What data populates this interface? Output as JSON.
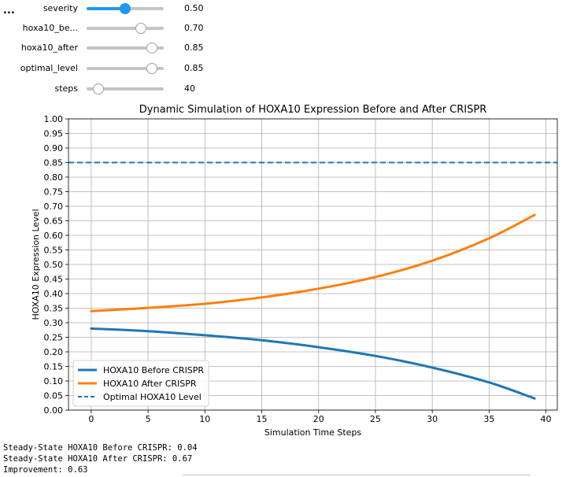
{
  "toolbar": {
    "ellipsis": "..."
  },
  "sliders": [
    {
      "label": "severity",
      "value_text": "0.50",
      "value": 0.5,
      "active": true
    },
    {
      "label": "hoxa10_be...",
      "value_text": "0.70",
      "value": 0.7,
      "active": false
    },
    {
      "label": "hoxa10_after",
      "value_text": "0.85",
      "value": 0.85,
      "active": false
    },
    {
      "label": "optimal_level",
      "value_text": "0.85",
      "value": 0.85,
      "active": false
    },
    {
      "label": "steps",
      "value_text": "40",
      "value": 40,
      "min": 10,
      "max": 200,
      "active": false
    }
  ],
  "chart_data": {
    "type": "line",
    "title": "Dynamic Simulation of HOXA10 Expression Before and After CRISPR",
    "xlabel": "Simulation Time Steps",
    "ylabel": "HOXA10 Expression Level",
    "xlim": [
      -2,
      41
    ],
    "ylim": [
      0,
      1.0
    ],
    "xticks": [
      0,
      5,
      10,
      15,
      20,
      25,
      30,
      35,
      40
    ],
    "yticks": [
      0.0,
      0.05,
      0.1,
      0.15,
      0.2,
      0.25,
      0.3,
      0.35,
      0.4,
      0.45,
      0.5,
      0.55,
      0.6,
      0.65,
      0.7,
      0.75,
      0.8,
      0.85,
      0.9,
      0.95,
      1.0
    ],
    "ytick_labels": [
      "0.00",
      "0.05",
      "0.10",
      "0.15",
      "0.20",
      "0.25",
      "0.30",
      "0.35",
      "0.40",
      "0.45",
      "0.50",
      "0.55",
      "0.60",
      "0.65",
      "0.70",
      "0.75",
      "0.80",
      "0.85",
      "0.90",
      "0.95",
      "1.00"
    ],
    "grid": true,
    "legend_position": "lower-left",
    "series": [
      {
        "name": "HOXA10 Before CRISPR",
        "color": "#1f77b4",
        "style": "solid",
        "x": [
          0,
          5,
          10,
          15,
          20,
          25,
          30,
          35,
          39
        ],
        "y": [
          0.28,
          0.271,
          0.257,
          0.24,
          0.216,
          0.186,
          0.146,
          0.095,
          0.04
        ]
      },
      {
        "name": "HOXA10 After CRISPR",
        "color": "#ff7f0e",
        "style": "solid",
        "x": [
          0,
          5,
          10,
          15,
          20,
          25,
          30,
          35,
          39
        ],
        "y": [
          0.34,
          0.351,
          0.365,
          0.387,
          0.417,
          0.457,
          0.513,
          0.59,
          0.67
        ]
      },
      {
        "name": "Optimal HOXA10 Level",
        "color": "#1f77b4",
        "style": "dashed",
        "y_const": 0.85
      }
    ]
  },
  "output": {
    "line1": "Steady-State HOXA10 Before CRISPR: 0.04",
    "line2": "Steady-State HOXA10 After CRISPR: 0.67",
    "line3": "Improvement: 0.63"
  }
}
